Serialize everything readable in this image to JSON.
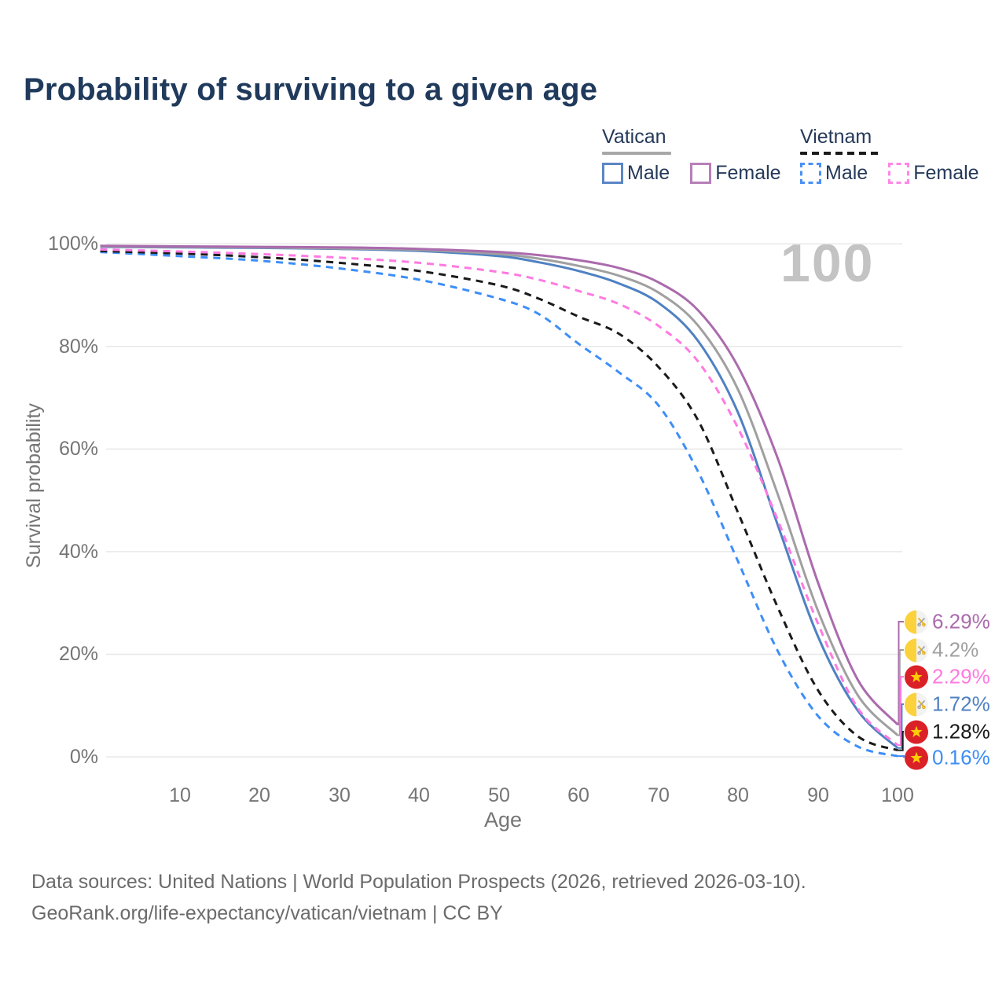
{
  "title": "Probability of surviving to a given age",
  "watermark": "100",
  "legend": {
    "groups": [
      {
        "name": "Vatican",
        "line_style": "solid",
        "sample_color": "#a8a8a8",
        "items": [
          {
            "label": "Male",
            "color": "#5b86c5"
          },
          {
            "label": "Female",
            "color": "#b77fb9"
          }
        ]
      },
      {
        "name": "Vietnam",
        "line_style": "dashed",
        "sample_color": "#1a1a1a",
        "items": [
          {
            "label": "Male",
            "color": "#4a90f5"
          },
          {
            "label": "Female",
            "color": "#ff86e6"
          }
        ]
      }
    ]
  },
  "chart_data": {
    "type": "line",
    "title": "Probability of surviving to a given age",
    "xlabel": "Age",
    "ylabel": "Survival probability",
    "xlim": [
      0,
      100
    ],
    "ylim": [
      0,
      100
    ],
    "grid": "horizontal",
    "y_ticks": [
      "100%",
      "80%",
      "60%",
      "40%",
      "20%",
      "0%"
    ],
    "x_ticks": [
      10,
      20,
      30,
      40,
      50,
      60,
      70,
      80,
      90,
      100
    ],
    "x": [
      0,
      10,
      20,
      30,
      40,
      50,
      55,
      60,
      65,
      70,
      75,
      80,
      85,
      90,
      95,
      100
    ],
    "series": [
      {
        "name": "Vatican Female",
        "country": "Vatican",
        "sex": "Female",
        "style": "solid",
        "color": "#ab6bad",
        "end_label": "6.29%",
        "end_value": 6.29,
        "flag": "vatican-flag-icon",
        "values": [
          99.6,
          99.5,
          99.4,
          99.3,
          99.0,
          98.4,
          97.8,
          96.8,
          95.3,
          92.5,
          87,
          76,
          58,
          34,
          15,
          6.29
        ]
      },
      {
        "name": "Vatican Both sexes",
        "country": "Vatican",
        "sex": "Both",
        "style": "solid",
        "color": "#a0a0a0",
        "end_label": "4.2%",
        "end_value": 4.2,
        "flag": "vatican-flag-icon",
        "values": [
          99.5,
          99.4,
          99.3,
          99.1,
          98.8,
          98.0,
          97.1,
          95.7,
          93.8,
          90.5,
          84,
          71.5,
          51,
          28.5,
          12,
          4.2
        ]
      },
      {
        "name": "Vietnam Female",
        "country": "Vietnam",
        "sex": "Female",
        "style": "dashed",
        "color": "#ff7ae1",
        "end_label": "2.29%",
        "end_value": 2.29,
        "flag": "vietnam-flag-icon",
        "values": [
          98.9,
          98.5,
          98.0,
          97.3,
          96.3,
          94.5,
          93.0,
          90.8,
          88.3,
          84,
          77,
          64,
          46,
          26,
          9.5,
          2.29
        ]
      },
      {
        "name": "Vatican Male",
        "country": "Vatican",
        "sex": "Male",
        "style": "solid",
        "color": "#4f81c2",
        "end_label": "1.72%",
        "end_value": 1.72,
        "flag": "vatican-flag-icon",
        "values": [
          99.4,
          99.3,
          99.2,
          99.0,
          98.6,
          97.6,
          96.4,
          94.7,
          92.3,
          88.5,
          81,
          67,
          45,
          23.5,
          9,
          1.72
        ]
      },
      {
        "name": "Vietnam Both sexes",
        "country": "Vietnam",
        "sex": "Both",
        "style": "dashed",
        "color": "#1a1a1a",
        "end_label": "1.28%",
        "end_value": 1.28,
        "flag": "vietnam-flag-icon",
        "values": [
          98.6,
          98.1,
          97.4,
          96.3,
          94.7,
          91.9,
          89.3,
          85.8,
          82.5,
          76,
          65.5,
          47.5,
          29,
          13,
          4,
          1.28
        ]
      },
      {
        "name": "Vietnam Male",
        "country": "Vietnam",
        "sex": "Male",
        "style": "dashed",
        "color": "#3e8ef7",
        "end_label": "0.16%",
        "end_value": 0.16,
        "flag": "vietnam-flag-icon",
        "values": [
          98.4,
          97.6,
          96.7,
          95.2,
          93.0,
          89.3,
          86.3,
          80.5,
          75,
          68.5,
          55.5,
          38,
          20.5,
          8,
          2,
          0.16
        ]
      }
    ]
  },
  "footer": {
    "line1": "Data sources: United Nations | World Population Prospects (2026, retrieved 2026-03-10).",
    "line2": "GeoRank.org/life-expectancy/vatican/vietnam | CC BY"
  }
}
